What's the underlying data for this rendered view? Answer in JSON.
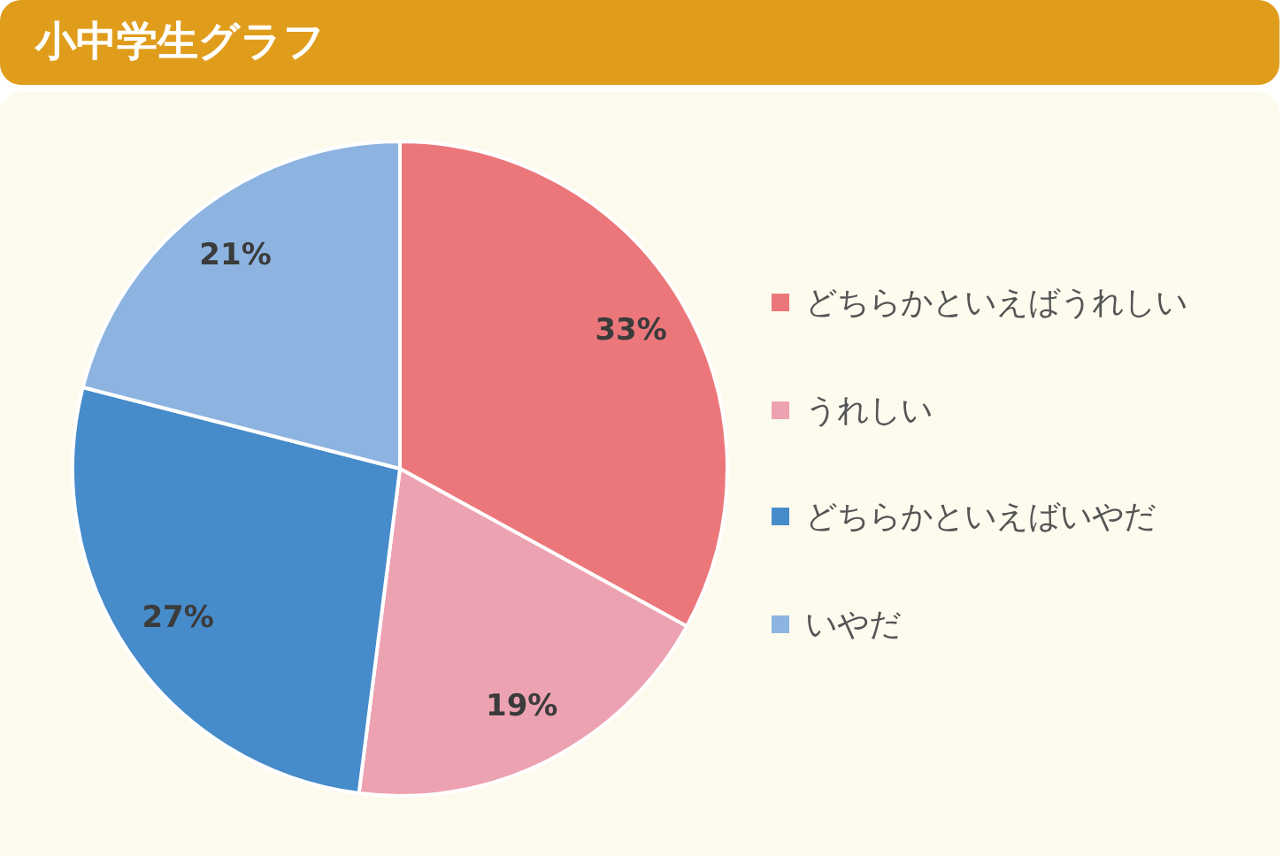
{
  "chart_data": {
    "type": "pie",
    "title": "小中学生グラフ",
    "categories": [
      "どちらかといえばうれしい",
      "うれしい",
      "どちらかといえばいやだ",
      "いやだ"
    ],
    "values": [
      33,
      19,
      27,
      21
    ],
    "colors": [
      "#ec777b",
      "#eda2b1",
      "#468bca",
      "#8db4e0"
    ],
    "value_labels": [
      "33%",
      "19%",
      "27%",
      "21%"
    ],
    "legend": "right"
  }
}
